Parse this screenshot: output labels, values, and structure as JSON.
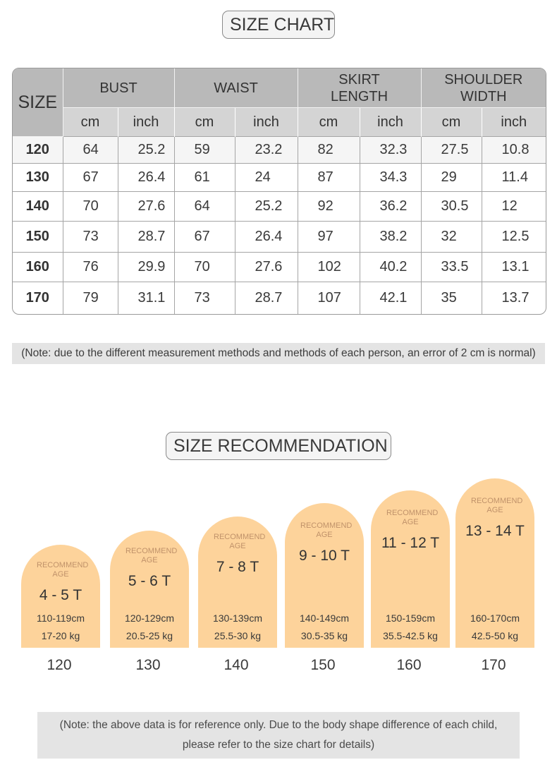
{
  "size_chart": {
    "title": "SIZE CHART",
    "headers": {
      "size": "SIZE",
      "groups": [
        "BUST",
        "WAIST",
        "SKIRT LENGTH",
        "SHOULDER WIDTH"
      ],
      "units": [
        "cm",
        "inch",
        "cm",
        "inch",
        "cm",
        "inch",
        "cm",
        "inch"
      ]
    },
    "rows": [
      [
        "120",
        "64",
        "25.2",
        "59",
        "23.2",
        "82",
        "32.3",
        "27.5",
        "10.8"
      ],
      [
        "130",
        "67",
        "26.4",
        "61",
        "24",
        "87",
        "34.3",
        "29",
        "11.4"
      ],
      [
        "140",
        "70",
        "27.6",
        "64",
        "25.2",
        "92",
        "36.2",
        "30.5",
        "12"
      ],
      [
        "150",
        "73",
        "28.7",
        "67",
        "26.4",
        "97",
        "38.2",
        "32",
        "12.5"
      ],
      [
        "160",
        "76",
        "29.9",
        "70",
        "27.6",
        "102",
        "40.2",
        "33.5",
        "13.1"
      ],
      [
        "170",
        "79",
        "31.1",
        "73",
        "28.7",
        "107",
        "42.1",
        "35",
        "13.7"
      ]
    ],
    "note": "(Note: due to the different measurement methods and methods of each person, an error of 2 cm is normal)"
  },
  "size_recommendation": {
    "title": "SIZE RECOMMENDATION",
    "cards": [
      {
        "label": "RECOMMEND AGE",
        "age": "4 - 5 T",
        "height": "110-119cm",
        "weight": "17-20 kg",
        "size": "120"
      },
      {
        "label": "RECOMMEND AGE",
        "age": "5 - 6 T",
        "height": "120-129cm",
        "weight": "20.5-25 kg",
        "size": "130"
      },
      {
        "label": "RECOMMEND AGE",
        "age": "7 - 8 T",
        "height": "130-139cm",
        "weight": "25.5-30 kg",
        "size": "140"
      },
      {
        "label": "RECOMMEND AGE",
        "age": "9 - 10 T",
        "height": "140-149cm",
        "weight": "30.5-35 kg",
        "size": "150"
      },
      {
        "label": "RECOMMEND AGE",
        "age": "11 - 12 T",
        "height": "150-159cm",
        "weight": "35.5-42.5 kg",
        "size": "160"
      },
      {
        "label": "RECOMMEND AGE",
        "age": "13 - 14 T",
        "height": "160-170cm",
        "weight": "42.5-50 kg",
        "size": "170"
      }
    ],
    "note_line1": "(Note: the above data is for reference only. Due to the body shape difference of each child,",
    "note_line2": "please refer to the size chart for details)"
  },
  "colors": {
    "card_fill": "#fdd39b",
    "header_gray": "#b9b9b9",
    "subheader_gray": "#d4d4d4",
    "note_bg": "#e4e4e4"
  }
}
